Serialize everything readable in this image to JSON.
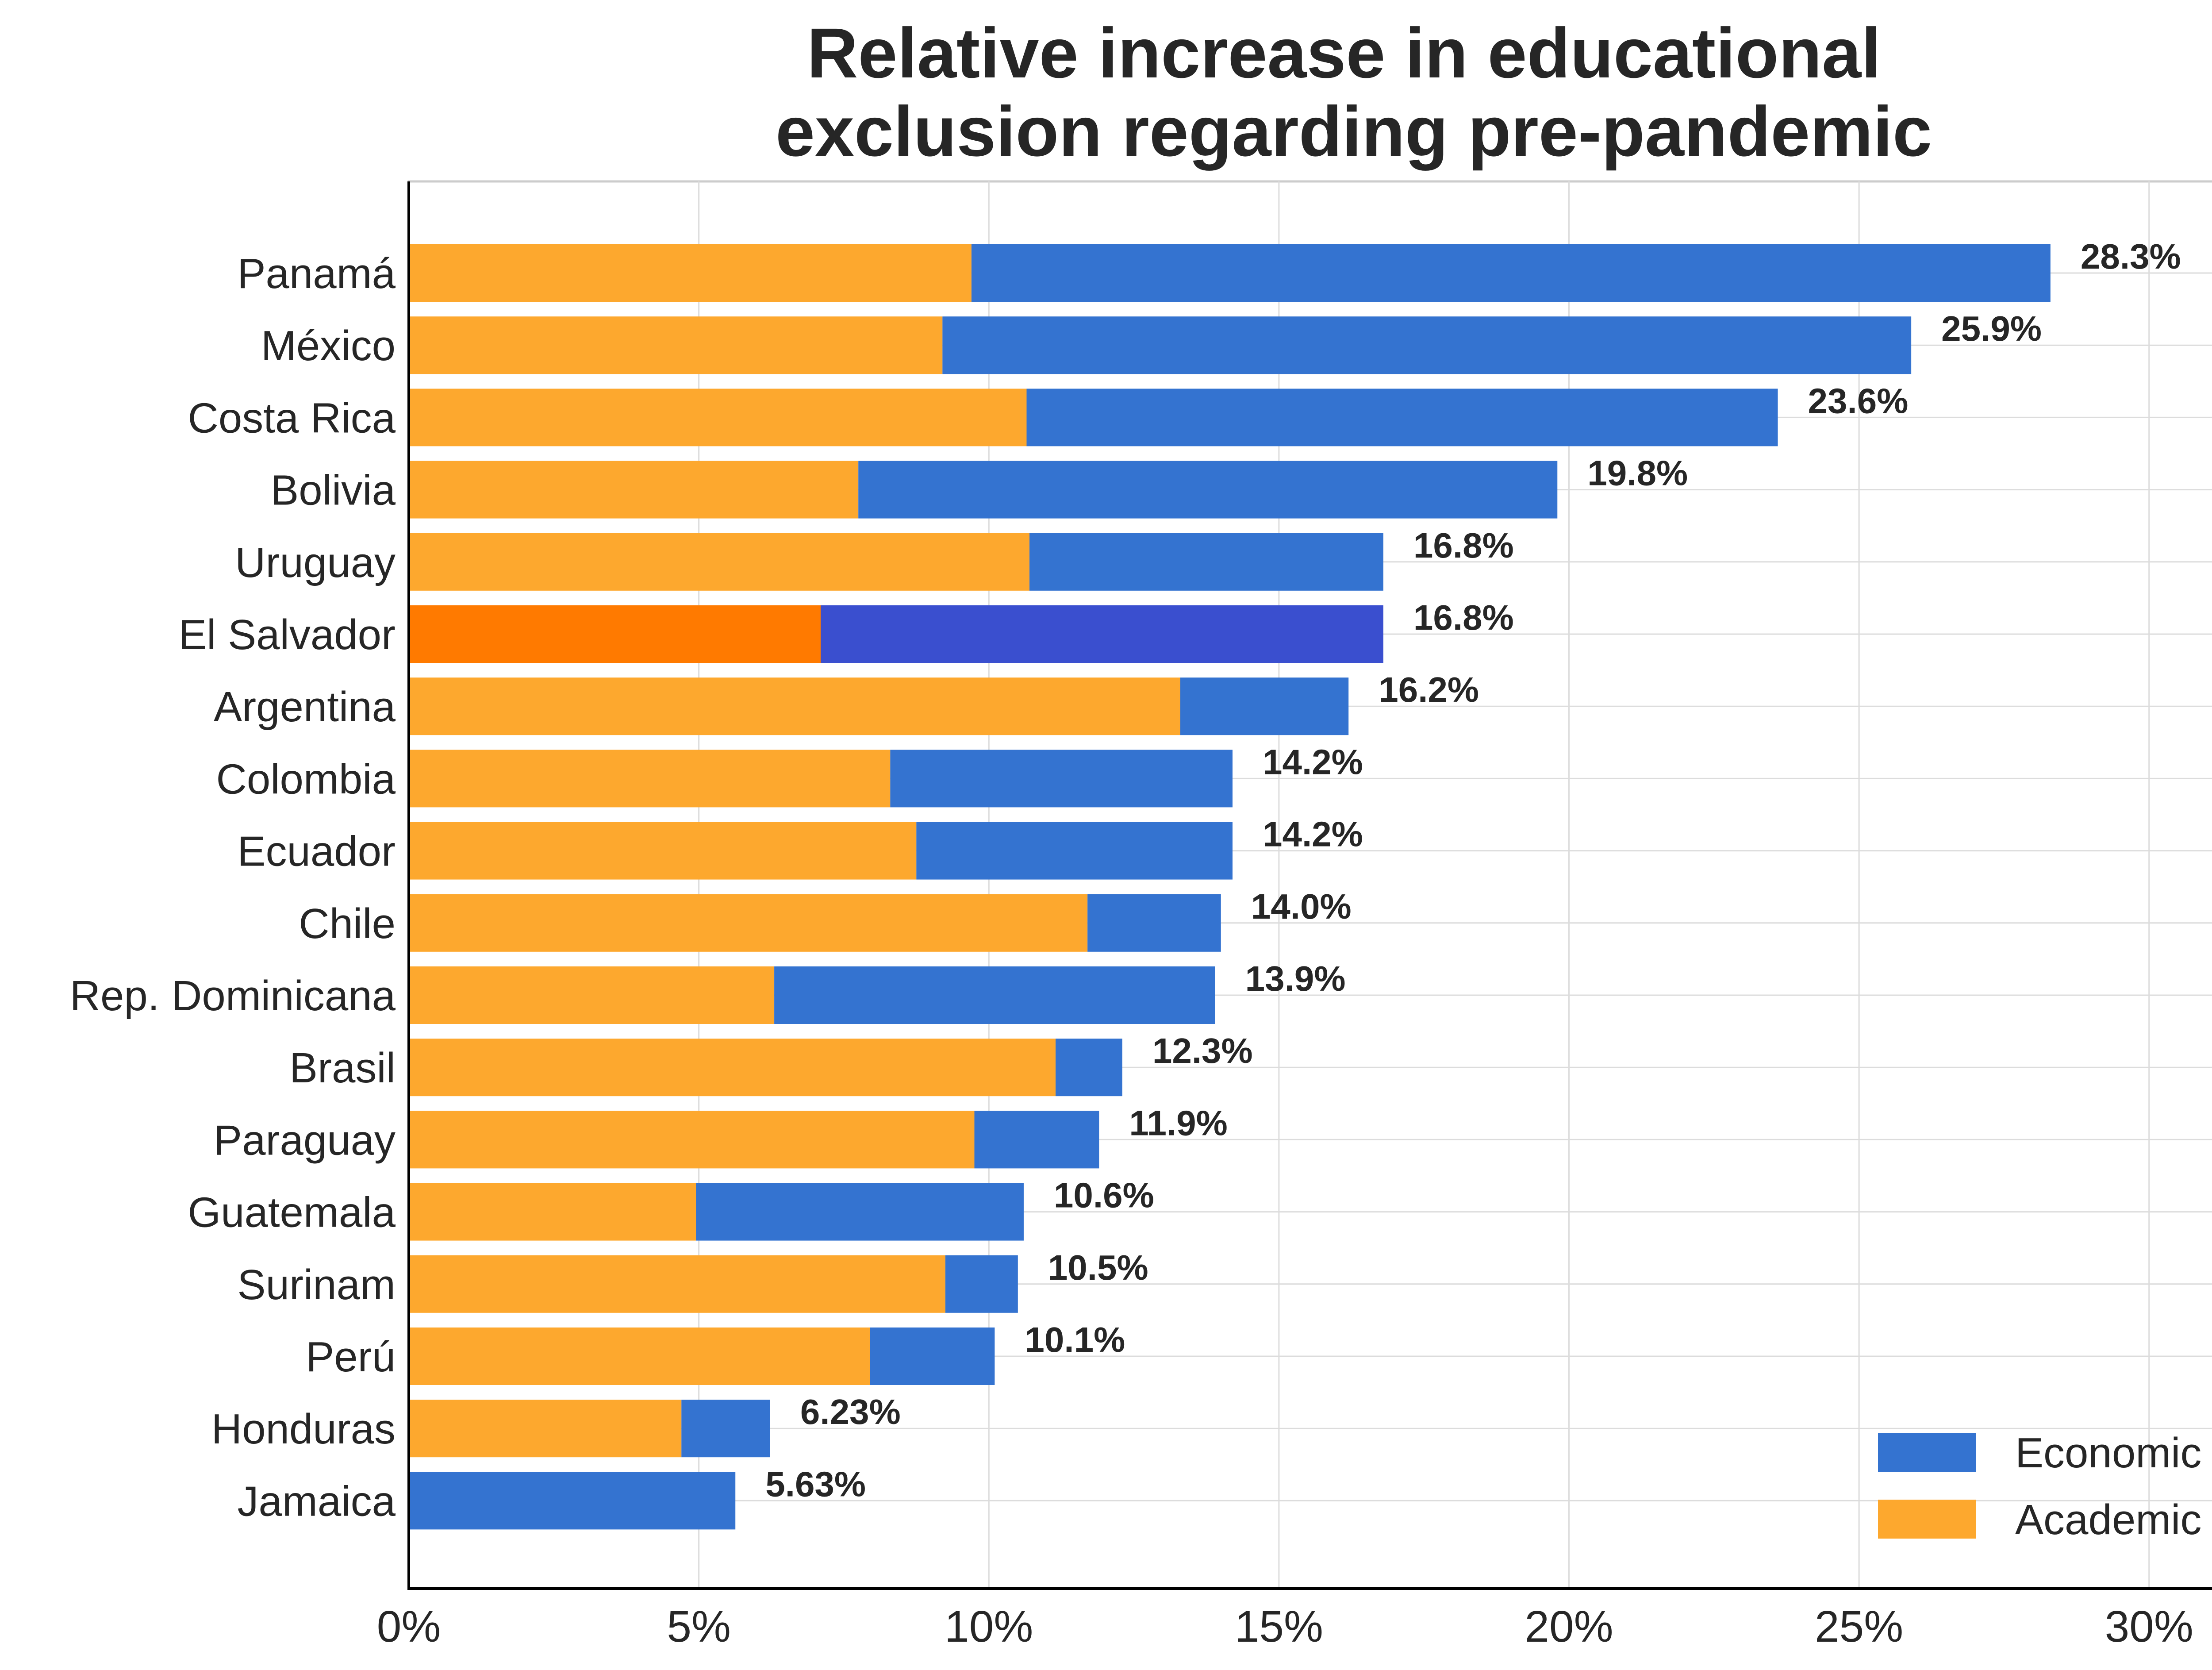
{
  "chart_data": {
    "type": "bar",
    "orientation": "horizontal",
    "stacked": true,
    "title": "Relative increase in educational\nexclusion regarding pre-pandemic",
    "xlabel": "",
    "ylabel": "",
    "xlim": [
      0,
      32
    ],
    "x_ticks": [
      0,
      5,
      10,
      15,
      20,
      25,
      30
    ],
    "x_tick_labels": [
      "0%",
      "5%",
      "10%",
      "15%",
      "20%",
      "25%",
      "30%"
    ],
    "grid": true,
    "legend_position": "bottom-right",
    "categories": [
      "Panamá",
      "México",
      "Costa Rica",
      "Bolivia",
      "Uruguay",
      "El Salvador",
      "Argentina",
      "Colombia",
      "Ecuador",
      "Chile",
      "Rep. Dominicana",
      "Brasil",
      "Paraguay",
      "Guatemala",
      "Surinam",
      "Perú",
      "Honduras",
      "Jamaica"
    ],
    "series": [
      {
        "name": "Academic",
        "color": "#FDA82E",
        "values": [
          9.7,
          9.2,
          10.65,
          7.75,
          10.7,
          7.1,
          13.3,
          8.3,
          8.75,
          11.7,
          6.3,
          11.15,
          9.75,
          4.95,
          9.25,
          7.95,
          4.7,
          0
        ]
      },
      {
        "name": "Economic",
        "color": "#3473D0",
        "values": [
          18.6,
          16.7,
          12.95,
          12.05,
          6.1,
          9.7,
          2.9,
          5.9,
          5.45,
          2.3,
          7.6,
          1.15,
          2.15,
          5.65,
          1.25,
          2.15,
          1.53,
          5.63
        ]
      }
    ],
    "highlight": {
      "category": "El Salvador",
      "academic_color": "#FF7A00",
      "economic_color": "#3A4FCF"
    },
    "totals": [
      28.3,
      25.9,
      23.6,
      19.8,
      16.8,
      16.8,
      16.2,
      14.2,
      14.2,
      14.0,
      13.9,
      12.3,
      11.9,
      10.6,
      10.5,
      10.1,
      6.23,
      5.63
    ],
    "total_labels": [
      "28.3%",
      "25.9%",
      "23.6%",
      "19.8%",
      "16.8%",
      "16.8%",
      "16.2%",
      "14.2%",
      "14.2%",
      "14.0%",
      "13.9%",
      "12.3%",
      "11.9%",
      "10.6%",
      "10.5%",
      "10.1%",
      "6.23%",
      "5.63%"
    ],
    "legend": [
      {
        "label": "Economic",
        "color": "#3473D0"
      },
      {
        "label": "Academic",
        "color": "#FDA82E"
      }
    ]
  }
}
